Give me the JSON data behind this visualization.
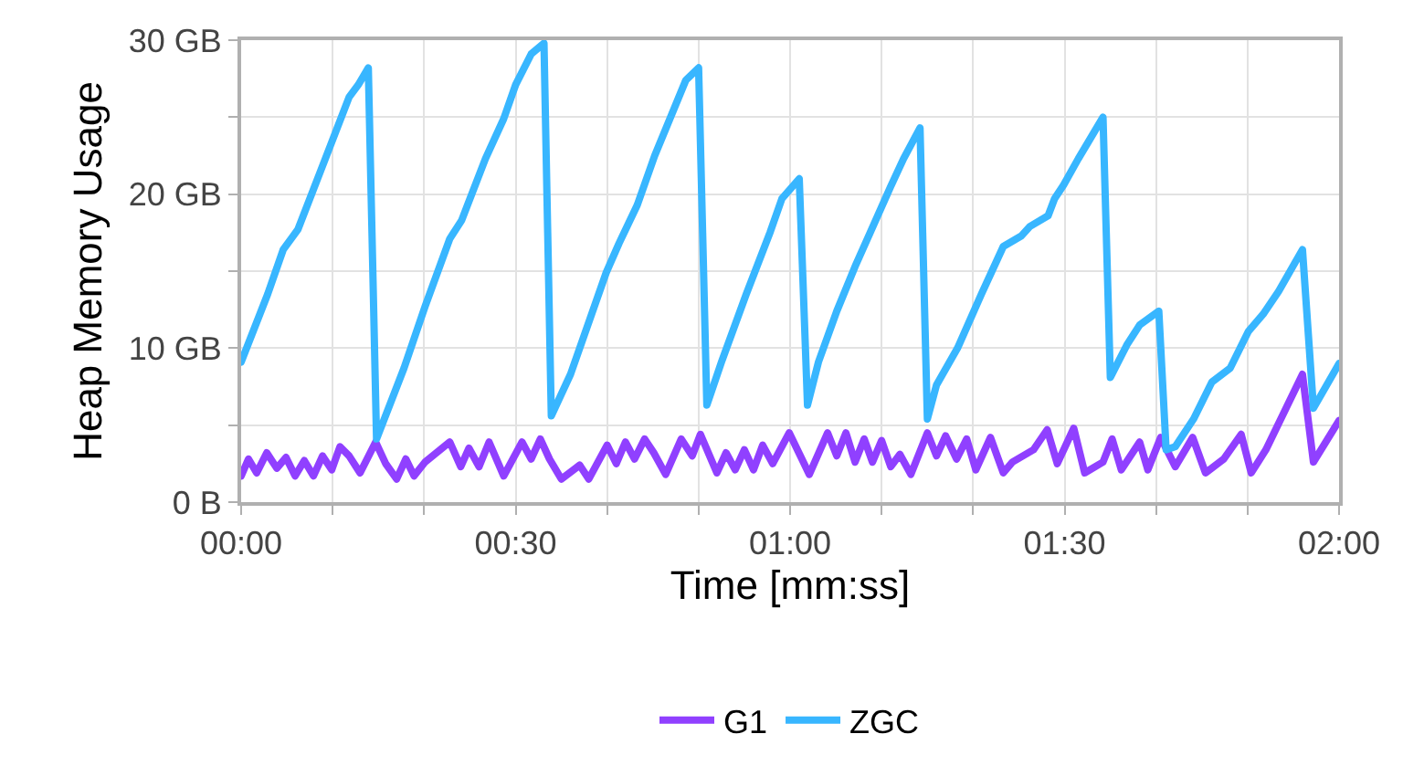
{
  "chart_data": {
    "type": "line",
    "xlabel": "Time [mm:ss]",
    "ylabel": "Heap Memory Usage",
    "xlim": [
      0,
      120
    ],
    "ylim": [
      0,
      30
    ],
    "xticks": [
      {
        "value": 0,
        "label": "00:00"
      },
      {
        "value": 10,
        "label": null
      },
      {
        "value": 20,
        "label": null
      },
      {
        "value": 30,
        "label": "00:30"
      },
      {
        "value": 40,
        "label": null
      },
      {
        "value": 50,
        "label": null
      },
      {
        "value": 60,
        "label": "01:00"
      },
      {
        "value": 70,
        "label": null
      },
      {
        "value": 80,
        "label": null
      },
      {
        "value": 90,
        "label": "01:30"
      },
      {
        "value": 100,
        "label": null
      },
      {
        "value": 110,
        "label": null
      },
      {
        "value": 120,
        "label": "02:00"
      }
    ],
    "yticks": [
      {
        "value": 0,
        "label": "0 B"
      },
      {
        "value": 5,
        "label": null
      },
      {
        "value": 10,
        "label": "10 GB"
      },
      {
        "value": 15,
        "label": null
      },
      {
        "value": 20,
        "label": "20 GB"
      },
      {
        "value": 25,
        "label": null
      },
      {
        "value": 30,
        "label": "30 GB"
      }
    ],
    "grid": true,
    "legend": "bottom",
    "marker": "none",
    "line_style": "solid",
    "series": [
      {
        "name": "G1",
        "color": "#9040ff",
        "x": [
          0,
          0.8,
          1.7,
          2.8,
          3.9,
          4.9,
          5.9,
          6.9,
          7.9,
          8.9,
          9.9,
          10.8,
          11.8,
          13.0,
          14.7,
          15.8,
          17.0,
          18.0,
          18.9,
          20.1,
          22.8,
          24.0,
          24.9,
          26.0,
          27.1,
          28.7,
          30.7,
          31.7,
          32.7,
          33.7,
          35.0,
          37.0,
          38.0,
          40.0,
          41.0,
          42.0,
          43.0,
          44.1,
          45.1,
          46.4,
          48.1,
          49.3,
          50.2,
          52.0,
          53.0,
          54.0,
          55.0,
          56.0,
          57.0,
          58.1,
          59.9,
          62.1,
          64.1,
          65.1,
          66.1,
          67.1,
          68.1,
          69.0,
          70.0,
          71.0,
          72.0,
          73.2,
          75.0,
          76.0,
          77.0,
          78.2,
          79.3,
          80.3,
          81.9,
          83.3,
          84.3,
          86.6,
          88.1,
          89.2,
          91.0,
          92.2,
          94.2,
          95.2,
          96.2,
          98.2,
          99.1,
          100.5,
          102.1,
          104.0,
          105.4,
          107.4,
          109.3,
          110.4,
          112.0,
          116.0,
          117.2,
          120.0
        ],
        "values": [
          1.7,
          2.8,
          1.9,
          3.2,
          2.2,
          2.9,
          1.7,
          2.7,
          1.7,
          3.0,
          2.1,
          3.6,
          3.0,
          1.9,
          3.9,
          2.5,
          1.5,
          2.8,
          1.7,
          2.6,
          3.9,
          2.3,
          3.5,
          2.3,
          3.9,
          1.7,
          3.9,
          2.8,
          4.1,
          2.8,
          1.5,
          2.4,
          1.5,
          3.7,
          2.5,
          3.9,
          2.8,
          4.1,
          3.2,
          1.8,
          4.1,
          3.0,
          4.4,
          1.9,
          3.2,
          2.1,
          3.4,
          2.1,
          3.7,
          2.5,
          4.5,
          1.8,
          4.5,
          3.0,
          4.5,
          2.6,
          4.1,
          2.6,
          4.0,
          2.3,
          3.1,
          1.8,
          4.5,
          3.0,
          4.3,
          2.8,
          4.1,
          2.1,
          4.2,
          1.9,
          2.6,
          3.4,
          4.7,
          2.5,
          4.8,
          1.9,
          2.6,
          4.1,
          2.1,
          3.9,
          2.1,
          4.2,
          2.3,
          4.2,
          1.9,
          2.8,
          4.4,
          1.9,
          3.4,
          8.3,
          2.6,
          5.3
        ]
      },
      {
        "name": "ZGC",
        "color": "#38b6ff",
        "x": [
          0,
          2.9,
          4.6,
          6.2,
          9.2,
          11.8,
          12.8,
          13.9,
          14.8,
          17.8,
          20.1,
          22.8,
          24.1,
          26.7,
          28.7,
          30.0,
          31.7,
          33.1,
          33.9,
          36.0,
          39.9,
          41.3,
          43.3,
          45.2,
          48.6,
          50.0,
          50.9,
          52.5,
          55.2,
          57.8,
          59.1,
          61.0,
          61.9,
          63.1,
          65.1,
          67.1,
          70.4,
          71.0,
          72.4,
          74.2,
          75.0,
          76.0,
          78.3,
          80.9,
          83.3,
          85.3,
          86.2,
          88.2,
          88.9,
          89.9,
          91.5,
          94.2,
          95.0,
          96.8,
          98.2,
          100.3,
          101.1,
          102.1,
          104.1,
          106.1,
          108.1,
          110.1,
          111.7,
          113.4,
          116.0,
          117.2,
          120.0
        ],
        "values": [
          9.1,
          13.5,
          16.4,
          17.7,
          22.3,
          26.3,
          27.1,
          28.2,
          4.1,
          8.7,
          12.7,
          17.1,
          18.3,
          22.3,
          24.9,
          27.1,
          29.1,
          29.8,
          5.6,
          8.3,
          14.9,
          16.8,
          19.3,
          22.5,
          27.4,
          28.2,
          6.3,
          9.1,
          13.5,
          17.5,
          19.7,
          21.0,
          6.3,
          9.1,
          12.4,
          15.3,
          19.7,
          20.5,
          22.3,
          24.3,
          5.4,
          7.6,
          10.0,
          13.5,
          16.6,
          17.3,
          17.9,
          18.6,
          19.7,
          20.6,
          22.3,
          25.0,
          8.1,
          10.2,
          11.5,
          12.4,
          3.4,
          3.6,
          5.4,
          7.8,
          8.7,
          11.1,
          12.2,
          13.7,
          16.4,
          6.1,
          9.0
        ]
      }
    ]
  }
}
